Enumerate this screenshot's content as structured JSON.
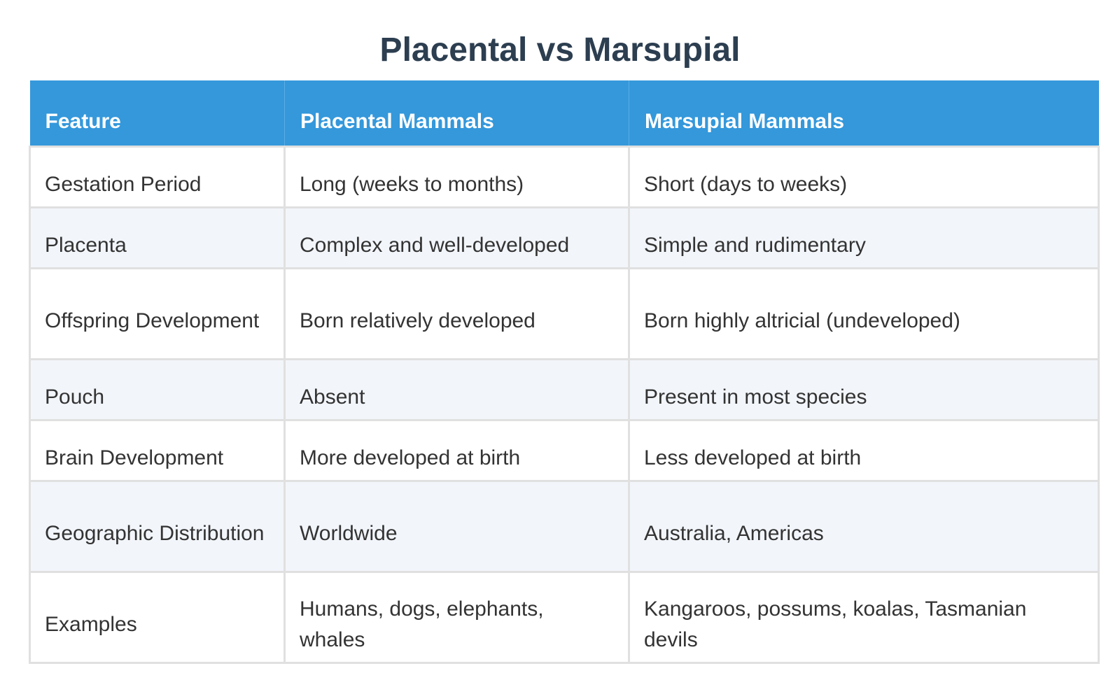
{
  "chart_data": {
    "type": "table",
    "title": "Placental vs Marsupial",
    "columns": [
      "Feature",
      "Placental Mammals",
      "Marsupial Mammals"
    ],
    "rows": [
      [
        "Gestation Period",
        "Long (weeks to months)",
        "Short (days to weeks)"
      ],
      [
        "Placenta",
        "Complex and well-developed",
        "Simple and rudimentary"
      ],
      [
        "Offspring Development",
        "Born relatively developed",
        "Born highly altricial (undeveloped)"
      ],
      [
        "Pouch",
        "Absent",
        "Present in most species"
      ],
      [
        "Brain Development",
        "More developed at birth",
        "Less developed at birth"
      ],
      [
        "Geographic Distribution",
        "Worldwide",
        "Australia, Americas"
      ],
      [
        "Examples",
        "Humans, dogs, elephants, whales",
        "Kangaroos, possums, koalas, Tasmanian devils"
      ]
    ],
    "colors": {
      "header_bg": "#3498db",
      "header_text": "#ffffff",
      "title_text": "#2c3e50",
      "row_alt_bg": "#f2f5fa"
    }
  }
}
